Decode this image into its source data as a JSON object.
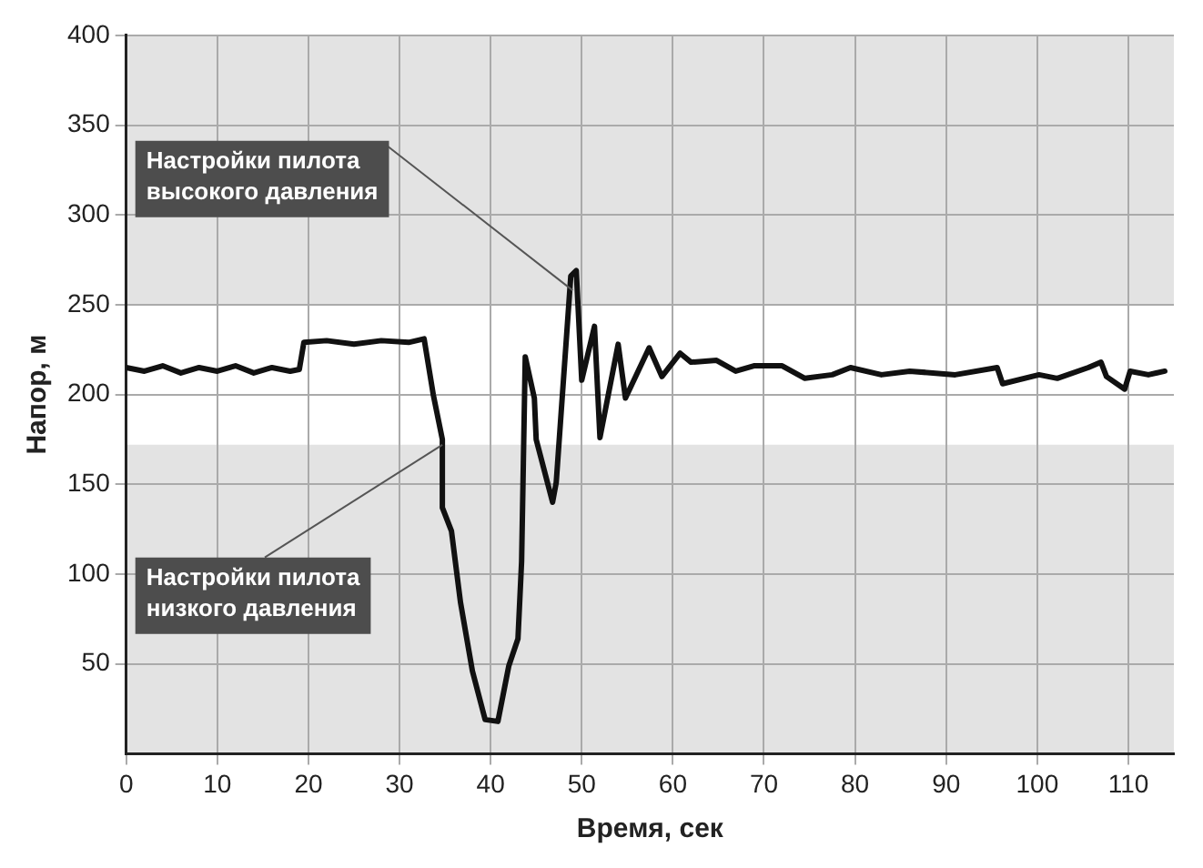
{
  "chart_data": {
    "type": "line",
    "xlabel": "Время, сек",
    "ylabel": "Напор, м",
    "x": [
      0,
      2,
      4,
      6,
      8,
      10,
      12,
      14,
      16,
      18,
      19,
      19.5,
      22,
      25,
      28,
      31,
      32.7,
      33.7,
      34.7,
      34.7,
      35.7,
      36.7,
      38,
      39.4,
      40.8,
      42,
      43,
      43.4,
      43.8,
      44.8,
      45,
      46.8,
      47.2,
      48.8,
      49.4,
      50,
      51.4,
      52,
      54,
      54.8,
      57.4,
      58.8,
      60.8,
      62,
      64.8,
      66.9,
      68.9,
      72,
      74.5,
      77.5,
      79.5,
      82.9,
      86,
      91,
      95.6,
      96.2,
      100.2,
      102.2,
      105.6,
      107,
      107.6,
      109.6,
      110.2,
      112.2,
      114
    ],
    "series": [
      {
        "color": "#111111",
        "values": [
          215,
          213,
          216,
          212,
          215,
          213,
          216,
          212,
          215,
          213,
          214,
          229,
          230,
          228,
          230,
          229,
          231,
          200,
          175,
          137,
          124,
          84,
          46,
          19,
          18,
          49,
          64,
          107,
          221,
          198,
          175,
          140,
          151,
          266,
          269,
          208,
          238,
          176,
          228,
          198,
          226,
          210,
          223,
          218,
          219,
          213,
          216,
          216,
          209,
          211,
          215,
          211,
          213,
          211,
          215,
          206,
          211,
          209,
          215,
          218,
          210,
          203,
          213,
          211,
          213
        ]
      }
    ],
    "xlim": [
      0,
      115
    ],
    "xticks": [
      0,
      10,
      20,
      30,
      40,
      50,
      60,
      70,
      80,
      90,
      100,
      110
    ],
    "ylim": [
      0,
      400
    ],
    "yticks": [
      50,
      100,
      150,
      200,
      250,
      300,
      350,
      400
    ],
    "grid": true,
    "legend": false,
    "marker": "none",
    "line_style": "solid",
    "bands": [
      {
        "axis": "y",
        "from": 250,
        "to": 400,
        "color": "#e3e3e3"
      },
      {
        "axis": "y",
        "from": 0,
        "to": 172,
        "color": "#e3e3e3"
      }
    ],
    "annotations": [
      {
        "text": "Настройки пилота\nвысокого давления",
        "x": 49,
        "y": 258
      },
      {
        "text": "Настройки пилота\nнизкого давления",
        "x": 34.7,
        "y": 172
      }
    ]
  }
}
